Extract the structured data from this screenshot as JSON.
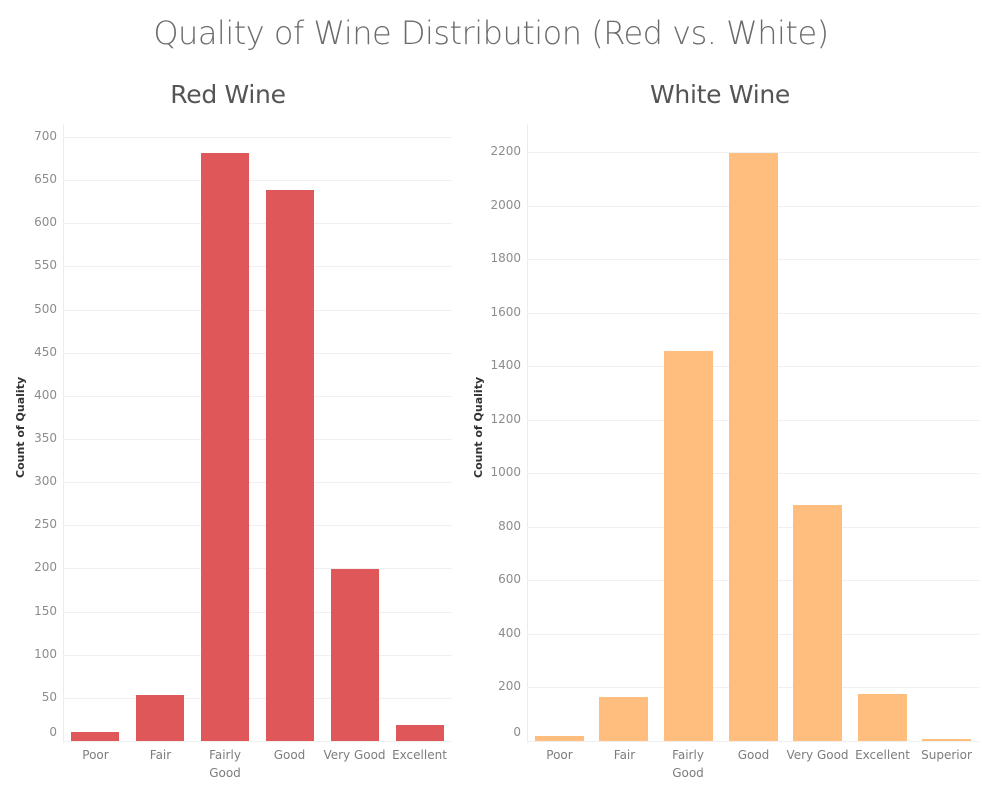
{
  "title": "Quality of Wine Distribution (Red vs. White)",
  "colors": {
    "red": "#e05759",
    "white": "#ffbe7d"
  },
  "chart_data": [
    {
      "type": "bar",
      "title": "Red Wine",
      "xlabel": "",
      "ylabel": "Count of Quality",
      "ylim": [
        0,
        700
      ],
      "yticks": [
        0,
        50,
        100,
        150,
        200,
        250,
        300,
        350,
        400,
        450,
        500,
        550,
        600,
        650,
        700
      ],
      "categories": [
        "Poor",
        "Fair",
        "Fairly Good",
        "Good",
        "Very Good",
        "Excellent"
      ],
      "values": [
        10,
        53,
        681,
        638,
        199,
        18
      ],
      "color": "#e05759",
      "grid": true
    },
    {
      "type": "bar",
      "title": "White Wine",
      "xlabel": "",
      "ylabel": "Count of Quality",
      "ylim": [
        0,
        2200
      ],
      "yticks": [
        0,
        200,
        400,
        600,
        800,
        1000,
        1200,
        1400,
        1600,
        1800,
        2000,
        2200
      ],
      "categories": [
        "Poor",
        "Fair",
        "Fairly Good",
        "Good",
        "Very Good",
        "Excellent",
        "Superior"
      ],
      "values": [
        20,
        163,
        1457,
        2198,
        880,
        175,
        5
      ],
      "color": "#ffbe7d",
      "grid": true
    }
  ]
}
